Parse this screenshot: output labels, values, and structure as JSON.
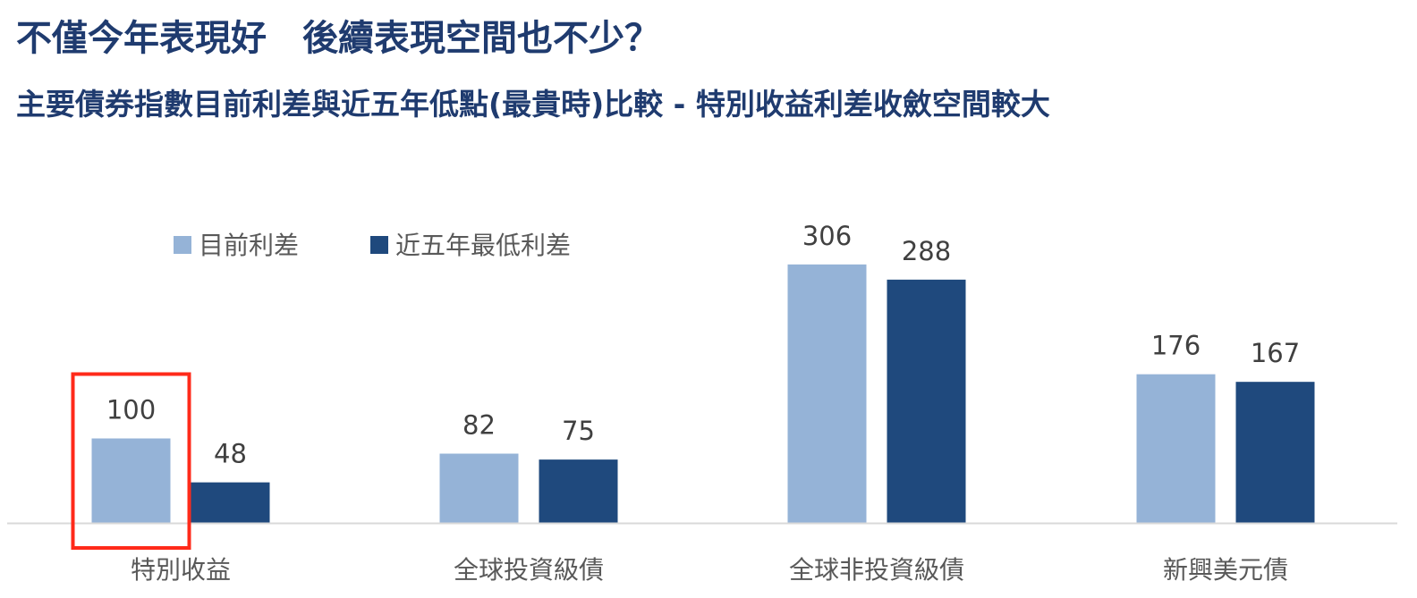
{
  "header": {
    "title": "不僅今年表現好　後續表現空間也不少？",
    "subtitle": "主要債券指數目前利差與近五年低點(最貴時)比較 - 特別收益利差收斂空間較大"
  },
  "colors": {
    "current": "#95b3d7",
    "low5y": "#1f497d",
    "highlight": "#ff2a1a",
    "axis": "#d9d9d9"
  },
  "chart_data": {
    "type": "bar",
    "categories": [
      "特別收益",
      "全球投資級債",
      "全球非投資級債",
      "新興美元債"
    ],
    "series": [
      {
        "name": "目前利差",
        "values": [
          100,
          82,
          306,
          176
        ]
      },
      {
        "name": "近五年最低利差",
        "values": [
          48,
          75,
          288,
          167
        ]
      }
    ],
    "ylim": [
      0,
      306
    ],
    "legend_position": "top-left",
    "grid": false,
    "highlight": {
      "category": "特別收益",
      "series": "目前利差"
    }
  }
}
